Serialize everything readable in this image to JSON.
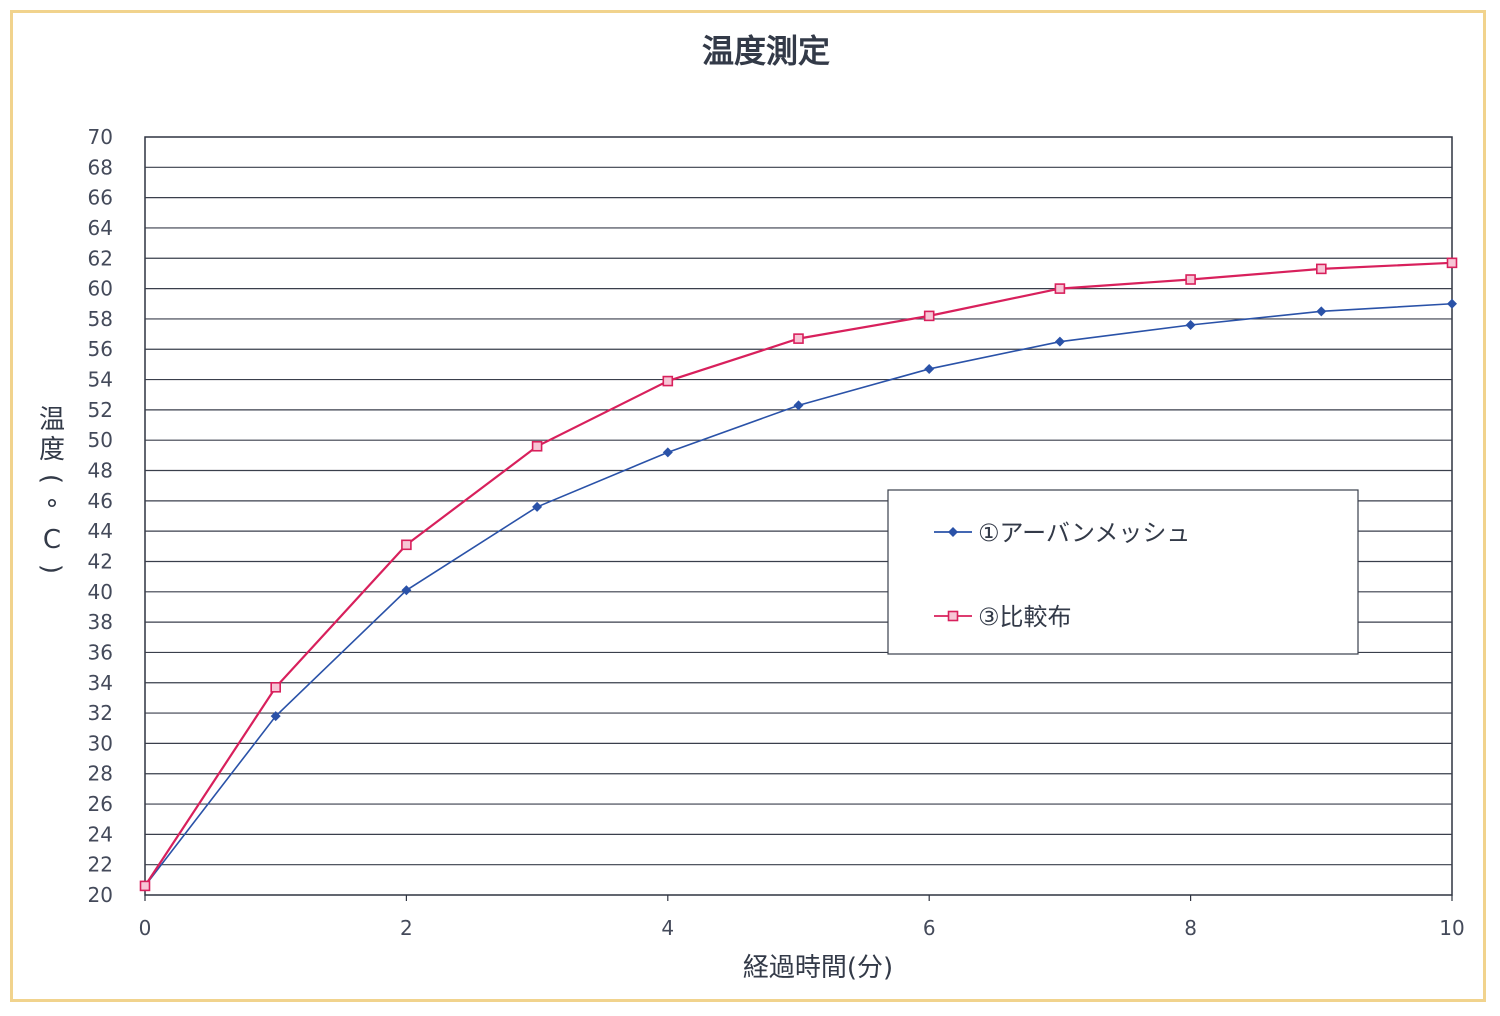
{
  "chart_data": {
    "type": "line",
    "title": "温度測定",
    "xlabel": "経過時間(分)",
    "ylabel": "温度(°C)",
    "xlim": [
      0,
      10
    ],
    "ylim": [
      20,
      70
    ],
    "x_ticks": [
      "0",
      "2",
      "4",
      "6",
      "8",
      "10"
    ],
    "y_ticks": [
      "20",
      "22",
      "24",
      "26",
      "28",
      "30",
      "32",
      "34",
      "36",
      "38",
      "40",
      "42",
      "44",
      "46",
      "48",
      "50",
      "52",
      "54",
      "56",
      "58",
      "60",
      "62",
      "64",
      "66",
      "68",
      "70"
    ],
    "grid": true,
    "legend_position": "right",
    "x": [
      0,
      1,
      2,
      3,
      4,
      5,
      6,
      7,
      8,
      9,
      10
    ],
    "series": [
      {
        "name": "①アーバンメッシュ",
        "color": "#2a52a8",
        "marker": "diamond",
        "values": [
          20.6,
          31.8,
          40.1,
          45.6,
          49.2,
          52.3,
          54.7,
          56.5,
          57.6,
          58.5,
          59.0
        ]
      },
      {
        "name": "③比較布",
        "color": "#d8205c",
        "marker": "square",
        "values": [
          20.6,
          33.7,
          43.1,
          49.6,
          53.9,
          56.7,
          58.2,
          60.0,
          60.6,
          61.3,
          61.7
        ]
      }
    ]
  }
}
